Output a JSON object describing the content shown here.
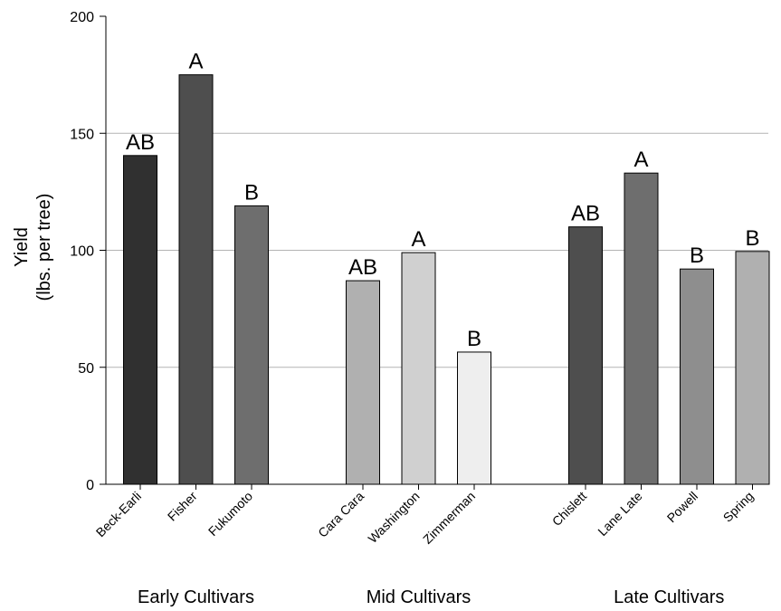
{
  "chart_data": {
    "type": "bar",
    "title": "",
    "ylabel_line1": "Yield",
    "ylabel_line2": "(lbs. per tree)",
    "xlabel": "",
    "ylim": [
      0,
      200
    ],
    "yticks": [
      0,
      50,
      100,
      150,
      200
    ],
    "grid": "horizontal",
    "groups": [
      {
        "label": "Early Cultivars",
        "bars": [
          {
            "category": "Beck-Earli",
            "value": 140.5,
            "letter": "AB",
            "color": "#303030"
          },
          {
            "category": "Fisher",
            "value": 175,
            "letter": "A",
            "color": "#4e4e4e"
          },
          {
            "category": "Fukumoto",
            "value": 119,
            "letter": "B",
            "color": "#6e6e6e"
          }
        ]
      },
      {
        "label": "Mid Cultivars",
        "bars": [
          {
            "category": "Cara Cara",
            "value": 87,
            "letter": "AB",
            "color": "#b0b0b0"
          },
          {
            "category": "Washington",
            "value": 99,
            "letter": "A",
            "color": "#d0d0d0"
          },
          {
            "category": "Zimmerman",
            "value": 56.5,
            "letter": "B",
            "color": "#eeeeee"
          }
        ]
      },
      {
        "label": "Late Cultivars",
        "bars": [
          {
            "category": "Chislett",
            "value": 110,
            "letter": "AB",
            "color": "#4e4e4e"
          },
          {
            "category": "Lane Late",
            "value": 133,
            "letter": "A",
            "color": "#6e6e6e"
          },
          {
            "category": "Powell",
            "value": 92,
            "letter": "B",
            "color": "#8e8e8e"
          },
          {
            "category": "Spring",
            "value": 99.5,
            "letter": "B",
            "color": "#b0b0b0"
          }
        ]
      }
    ]
  }
}
